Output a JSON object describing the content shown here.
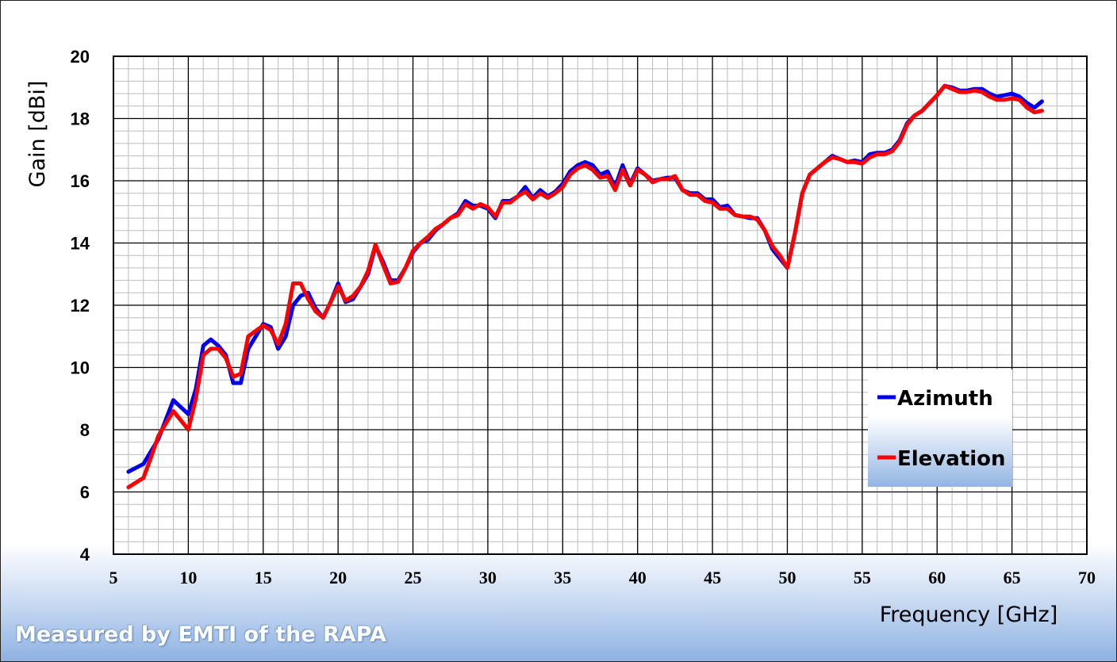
{
  "chart_data": {
    "type": "line",
    "xlabel": "Frequency [GHz]",
    "ylabel": "Gain [dBi]",
    "xlim": [
      5,
      70
    ],
    "ylim": [
      4,
      20
    ],
    "x_ticks": [
      "5",
      "10",
      "15",
      "20",
      "25",
      "30",
      "35",
      "40",
      "45",
      "50",
      "55",
      "60",
      "65",
      "70"
    ],
    "y_ticks": [
      "4",
      "6",
      "8",
      "10",
      "12",
      "14",
      "16",
      "18",
      "20"
    ],
    "grid": true,
    "legend_position": "bottom-right",
    "series": [
      {
        "name": "Azimuth",
        "color": "#0000ee",
        "points": [
          [
            6,
            6.65
          ],
          [
            7,
            6.9
          ],
          [
            8,
            7.7
          ],
          [
            9,
            8.95
          ],
          [
            10,
            8.5
          ],
          [
            10.5,
            9.3
          ],
          [
            11,
            10.7
          ],
          [
            11.5,
            10.9
          ],
          [
            12,
            10.7
          ],
          [
            12.5,
            10.4
          ],
          [
            13,
            9.5
          ],
          [
            13.5,
            9.5
          ],
          [
            14,
            10.6
          ],
          [
            15,
            11.4
          ],
          [
            15.5,
            11.3
          ],
          [
            16,
            10.6
          ],
          [
            16.5,
            11.0
          ],
          [
            17,
            12.0
          ],
          [
            17.5,
            12.3
          ],
          [
            18,
            12.4
          ],
          [
            18.5,
            11.9
          ],
          [
            19,
            11.6
          ],
          [
            19.5,
            12.1
          ],
          [
            20,
            12.7
          ],
          [
            20.5,
            12.1
          ],
          [
            21,
            12.2
          ],
          [
            21.5,
            12.6
          ],
          [
            22,
            13.0
          ],
          [
            22.5,
            13.9
          ],
          [
            23,
            13.4
          ],
          [
            23.5,
            12.8
          ],
          [
            24,
            12.8
          ],
          [
            24.5,
            13.2
          ],
          [
            25,
            13.7
          ],
          [
            25.5,
            14.0
          ],
          [
            26,
            14.1
          ],
          [
            26.5,
            14.4
          ],
          [
            27,
            14.6
          ],
          [
            27.5,
            14.8
          ],
          [
            28,
            14.95
          ],
          [
            28.5,
            15.35
          ],
          [
            29,
            15.2
          ],
          [
            29.5,
            15.2
          ],
          [
            30,
            15.1
          ],
          [
            30.5,
            14.8
          ],
          [
            31,
            15.35
          ],
          [
            31.5,
            15.35
          ],
          [
            32,
            15.5
          ],
          [
            32.5,
            15.8
          ],
          [
            33,
            15.45
          ],
          [
            33.5,
            15.7
          ],
          [
            34,
            15.5
          ],
          [
            34.5,
            15.65
          ],
          [
            35,
            15.9
          ],
          [
            35.5,
            16.3
          ],
          [
            36,
            16.5
          ],
          [
            36.5,
            16.6
          ],
          [
            37,
            16.5
          ],
          [
            37.5,
            16.2
          ],
          [
            38,
            16.3
          ],
          [
            38.5,
            15.8
          ],
          [
            39,
            16.5
          ],
          [
            39.5,
            15.9
          ],
          [
            40,
            16.4
          ],
          [
            40.5,
            16.2
          ],
          [
            41,
            16.0
          ],
          [
            41.5,
            16.05
          ],
          [
            42,
            16.1
          ],
          [
            42.5,
            16.1
          ],
          [
            43,
            15.7
          ],
          [
            43.5,
            15.6
          ],
          [
            44,
            15.6
          ],
          [
            44.5,
            15.4
          ],
          [
            45,
            15.4
          ],
          [
            45.5,
            15.15
          ],
          [
            46,
            15.2
          ],
          [
            46.5,
            14.9
          ],
          [
            47,
            14.85
          ],
          [
            47.5,
            14.8
          ],
          [
            48,
            14.8
          ],
          [
            48.5,
            14.4
          ],
          [
            49,
            13.8
          ],
          [
            49.5,
            13.5
          ],
          [
            50,
            13.2
          ],
          [
            50.5,
            14.3
          ],
          [
            51,
            15.6
          ],
          [
            51.5,
            16.2
          ],
          [
            52,
            16.4
          ],
          [
            52.5,
            16.6
          ],
          [
            53,
            16.8
          ],
          [
            53.5,
            16.7
          ],
          [
            54,
            16.6
          ],
          [
            54.5,
            16.65
          ],
          [
            55,
            16.6
          ],
          [
            55.5,
            16.85
          ],
          [
            56,
            16.9
          ],
          [
            56.5,
            16.9
          ],
          [
            57,
            17.0
          ],
          [
            57.5,
            17.3
          ],
          [
            58,
            17.85
          ],
          [
            58.5,
            18.1
          ],
          [
            59,
            18.25
          ],
          [
            59.5,
            18.5
          ],
          [
            60,
            18.75
          ],
          [
            60.5,
            19.05
          ],
          [
            61,
            19.0
          ],
          [
            61.5,
            18.9
          ],
          [
            62,
            18.9
          ],
          [
            62.5,
            18.95
          ],
          [
            63,
            18.95
          ],
          [
            63.5,
            18.8
          ],
          [
            64,
            18.7
          ],
          [
            64.5,
            18.75
          ],
          [
            65,
            18.8
          ],
          [
            65.5,
            18.7
          ],
          [
            66,
            18.5
          ],
          [
            66.5,
            18.35
          ],
          [
            67,
            18.55
          ]
        ]
      },
      {
        "name": "Elevation",
        "color": "#ff0000",
        "points": [
          [
            6,
            6.15
          ],
          [
            7,
            6.45
          ],
          [
            7.5,
            7.1
          ],
          [
            8,
            7.8
          ],
          [
            9,
            8.6
          ],
          [
            10,
            8.0
          ],
          [
            10.5,
            9.0
          ],
          [
            11,
            10.4
          ],
          [
            11.5,
            10.6
          ],
          [
            12,
            10.6
          ],
          [
            12.5,
            10.3
          ],
          [
            13,
            9.7
          ],
          [
            13.5,
            9.8
          ],
          [
            14,
            11.0
          ],
          [
            15,
            11.35
          ],
          [
            15.5,
            11.2
          ],
          [
            16,
            10.75
          ],
          [
            16.5,
            11.4
          ],
          [
            17,
            12.7
          ],
          [
            17.5,
            12.7
          ],
          [
            18,
            12.2
          ],
          [
            18.5,
            11.8
          ],
          [
            19,
            11.6
          ],
          [
            19.5,
            12.1
          ],
          [
            20,
            12.6
          ],
          [
            20.5,
            12.15
          ],
          [
            21,
            12.3
          ],
          [
            21.5,
            12.6
          ],
          [
            22,
            13.1
          ],
          [
            22.5,
            13.95
          ],
          [
            23,
            13.3
          ],
          [
            23.5,
            12.7
          ],
          [
            24,
            12.75
          ],
          [
            24.5,
            13.2
          ],
          [
            25,
            13.75
          ],
          [
            25.5,
            14.0
          ],
          [
            26,
            14.2
          ],
          [
            26.5,
            14.45
          ],
          [
            27,
            14.6
          ],
          [
            27.5,
            14.8
          ],
          [
            28,
            14.9
          ],
          [
            28.5,
            15.25
          ],
          [
            29,
            15.1
          ],
          [
            29.5,
            15.25
          ],
          [
            30,
            15.15
          ],
          [
            30.5,
            14.85
          ],
          [
            31,
            15.3
          ],
          [
            31.5,
            15.3
          ],
          [
            32,
            15.5
          ],
          [
            32.5,
            15.65
          ],
          [
            33,
            15.4
          ],
          [
            33.5,
            15.6
          ],
          [
            34,
            15.45
          ],
          [
            34.5,
            15.6
          ],
          [
            35,
            15.8
          ],
          [
            35.5,
            16.2
          ],
          [
            36,
            16.4
          ],
          [
            36.5,
            16.5
          ],
          [
            37,
            16.35
          ],
          [
            37.5,
            16.1
          ],
          [
            38,
            16.15
          ],
          [
            38.5,
            15.7
          ],
          [
            39,
            16.35
          ],
          [
            39.5,
            15.85
          ],
          [
            40,
            16.35
          ],
          [
            40.5,
            16.2
          ],
          [
            41,
            15.95
          ],
          [
            41.5,
            16.05
          ],
          [
            42,
            16.05
          ],
          [
            42.5,
            16.15
          ],
          [
            43,
            15.7
          ],
          [
            43.5,
            15.55
          ],
          [
            44,
            15.55
          ],
          [
            44.5,
            15.35
          ],
          [
            45,
            15.3
          ],
          [
            45.5,
            15.1
          ],
          [
            46,
            15.1
          ],
          [
            46.5,
            14.9
          ],
          [
            47,
            14.85
          ],
          [
            47.5,
            14.85
          ],
          [
            48,
            14.75
          ],
          [
            48.5,
            14.4
          ],
          [
            49,
            13.9
          ],
          [
            49.5,
            13.6
          ],
          [
            50,
            13.2
          ],
          [
            50.5,
            14.3
          ],
          [
            51,
            15.6
          ],
          [
            51.5,
            16.2
          ],
          [
            52,
            16.4
          ],
          [
            52.5,
            16.6
          ],
          [
            53,
            16.75
          ],
          [
            53.5,
            16.7
          ],
          [
            54,
            16.6
          ],
          [
            54.5,
            16.6
          ],
          [
            55,
            16.55
          ],
          [
            55.5,
            16.75
          ],
          [
            56,
            16.85
          ],
          [
            56.5,
            16.85
          ],
          [
            57,
            16.95
          ],
          [
            57.5,
            17.25
          ],
          [
            58,
            17.8
          ],
          [
            58.5,
            18.1
          ],
          [
            59,
            18.25
          ],
          [
            59.5,
            18.5
          ],
          [
            60,
            18.75
          ],
          [
            60.5,
            19.05
          ],
          [
            61,
            18.95
          ],
          [
            61.5,
            18.85
          ],
          [
            62,
            18.85
          ],
          [
            62.5,
            18.9
          ],
          [
            63,
            18.85
          ],
          [
            63.5,
            18.7
          ],
          [
            64,
            18.6
          ],
          [
            64.5,
            18.6
          ],
          [
            65,
            18.65
          ],
          [
            65.5,
            18.6
          ],
          [
            66,
            18.35
          ],
          [
            66.5,
            18.2
          ],
          [
            67,
            18.25
          ]
        ]
      }
    ]
  },
  "footer_note": "Measured by EMTI of the RAPA"
}
